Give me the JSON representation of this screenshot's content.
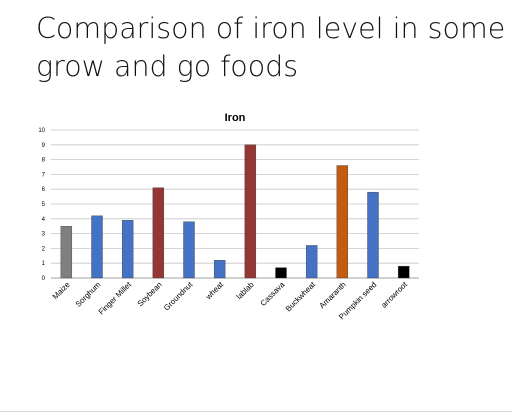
{
  "slide": {
    "title_line1": "Comparison of iron level in some",
    "title_line2": "grow and go foods"
  },
  "chart_data": {
    "type": "bar",
    "title": "Iron",
    "xlabel": "",
    "ylabel": "",
    "ylim": [
      0,
      10
    ],
    "yticks": [
      0,
      1,
      2,
      3,
      4,
      5,
      6,
      7,
      8,
      9,
      10
    ],
    "grid": true,
    "legend": "none",
    "categories": [
      "Maize",
      "Sorghum",
      "Finger Millet",
      "Soybean",
      "Groundnut",
      "wheat",
      "lablab",
      "Cassava",
      "Buckwheat",
      "Amaranth",
      "Pumpkin seed",
      "arrowroot"
    ],
    "values": [
      3.5,
      4.2,
      3.9,
      6.1,
      3.8,
      1.2,
      9.0,
      0.7,
      2.2,
      7.6,
      5.8,
      0.8
    ],
    "bar_colors": [
      "#7f7f7f",
      "#4472c4",
      "#4472c4",
      "#943634",
      "#4472c4",
      "#4472c4",
      "#943634",
      "#000000",
      "#4472c4",
      "#c55a11",
      "#4472c4",
      "#000000"
    ]
  }
}
